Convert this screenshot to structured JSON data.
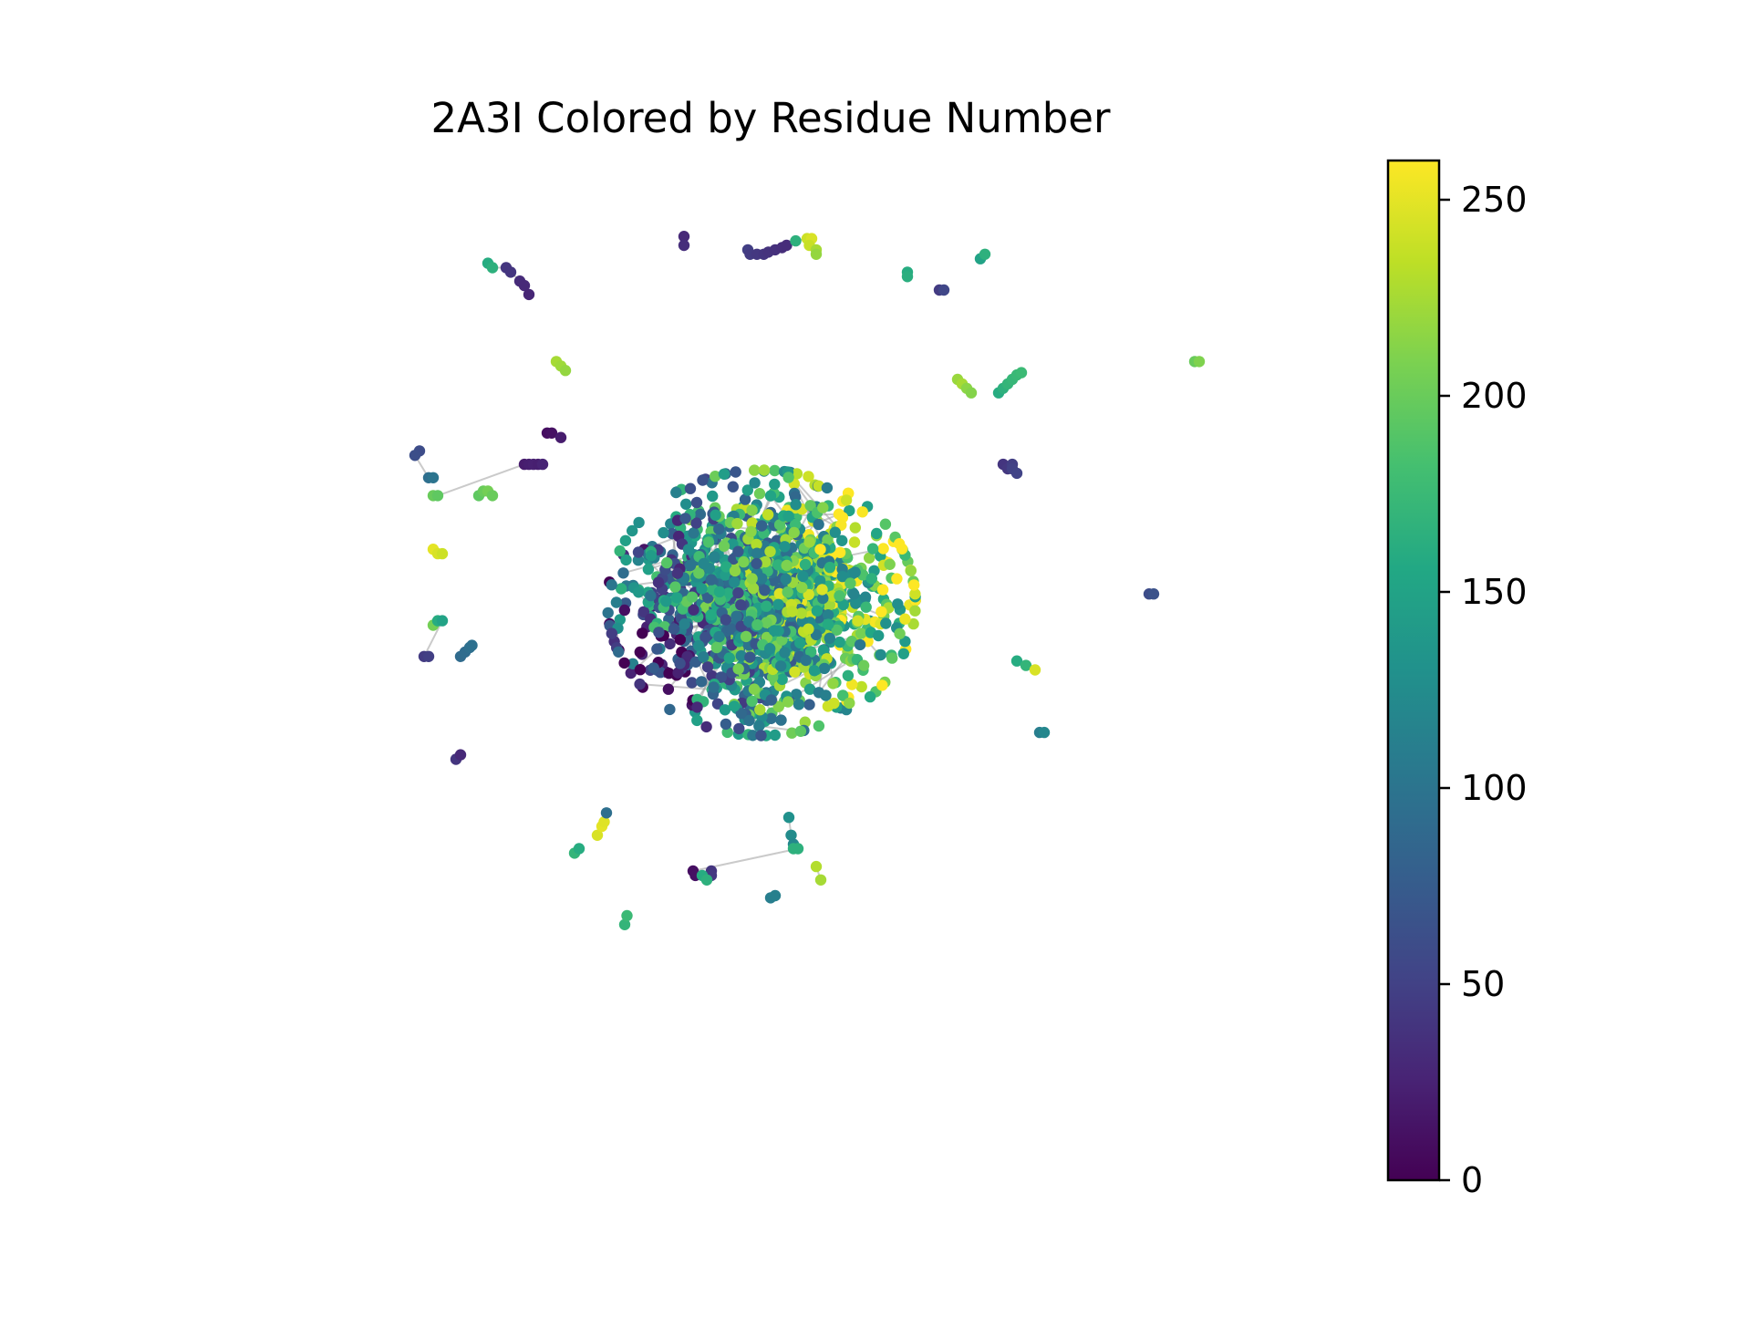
{
  "chart_data": {
    "type": "scatter",
    "title": "2A3I Colored by Residue Number",
    "xlabel": "",
    "ylabel": "",
    "axes_visible": false,
    "grid": false,
    "legend": "none",
    "colormap": "viridis",
    "color_variable": "residue number",
    "colorbar": {
      "position": "right",
      "min": 0,
      "max": 260,
      "ticks": [
        0,
        50,
        100,
        150,
        200,
        250
      ],
      "tick_labels": [
        "0",
        "50",
        "100",
        "150",
        "200",
        "250"
      ]
    },
    "edge_color": "#9e9e9e",
    "layout_xlim": [
      -1,
      1
    ],
    "layout_ylim": [
      -1,
      1
    ],
    "peripheral_groups": [
      {
        "residues": [
          30,
          34
        ],
        "points": [
          [
            -0.19,
            0.92
          ],
          [
            -0.19,
            0.9
          ]
        ]
      },
      {
        "residues": [
          48,
          45,
          42,
          40,
          38,
          36,
          34,
          33
        ],
        "points": [
          [
            -0.05,
            0.89
          ],
          [
            -0.045,
            0.88
          ],
          [
            -0.03,
            0.88
          ],
          [
            -0.015,
            0.88
          ],
          [
            -0.005,
            0.885
          ],
          [
            0.01,
            0.89
          ],
          [
            0.025,
            0.895
          ],
          [
            0.035,
            0.9
          ]
        ]
      },
      {
        "residues": [
          165,
          240,
          245,
          238,
          225,
          218
        ],
        "points": [
          [
            0.055,
            0.91
          ],
          [
            0.08,
            0.915
          ],
          [
            0.09,
            0.915
          ],
          [
            0.085,
            0.9
          ],
          [
            0.1,
            0.89
          ],
          [
            0.1,
            0.88
          ]
        ]
      },
      {
        "residues": [
          160,
          163
        ],
        "points": [
          [
            0.3,
            0.84
          ],
          [
            0.3,
            0.83
          ]
        ]
      },
      {
        "residues": [
          150,
          165
        ],
        "points": [
          [
            0.46,
            0.87
          ],
          [
            0.47,
            0.88
          ]
        ]
      },
      {
        "residues": [
          45,
          55
        ],
        "points": [
          [
            0.37,
            0.8
          ],
          [
            0.38,
            0.8
          ]
        ]
      },
      {
        "residues": [
          160,
          165,
          40,
          40,
          32,
          30,
          28
        ],
        "points": [
          [
            -0.62,
            0.86
          ],
          [
            -0.61,
            0.85
          ],
          [
            -0.58,
            0.85
          ],
          [
            -0.57,
            0.84
          ],
          [
            -0.55,
            0.82
          ],
          [
            -0.54,
            0.81
          ],
          [
            -0.53,
            0.79
          ]
        ]
      },
      {
        "residues": [
          225,
          222,
          218
        ],
        "points": [
          [
            -0.47,
            0.64
          ],
          [
            -0.46,
            0.63
          ],
          [
            -0.45,
            0.62
          ]
        ]
      },
      {
        "residues": [
          10,
          12,
          20
        ],
        "points": [
          [
            -0.49,
            0.48
          ],
          [
            -0.48,
            0.48
          ],
          [
            -0.46,
            0.47
          ]
        ]
      },
      {
        "residues": [
          220,
          225,
          215,
          212
        ],
        "points": [
          [
            0.41,
            0.6
          ],
          [
            0.42,
            0.59
          ],
          [
            0.43,
            0.58
          ],
          [
            0.44,
            0.57
          ]
        ]
      },
      {
        "residues": [
          160,
          165,
          170,
          172,
          174,
          176
        ],
        "points": [
          [
            0.5,
            0.57
          ],
          [
            0.51,
            0.58
          ],
          [
            0.52,
            0.59
          ],
          [
            0.53,
            0.6
          ],
          [
            0.54,
            0.61
          ],
          [
            0.55,
            0.615
          ]
        ]
      },
      {
        "residues": [
          40,
          42,
          48,
          50,
          52
        ],
        "points": [
          [
            0.51,
            0.41
          ],
          [
            0.52,
            0.4
          ],
          [
            0.53,
            0.41
          ],
          [
            0.53,
            0.4
          ],
          [
            0.54,
            0.39
          ]
        ]
      },
      {
        "residues": [
          60,
          62,
          95,
          100
        ],
        "points": [
          [
            -0.77,
            0.44
          ],
          [
            -0.78,
            0.43
          ],
          [
            -0.75,
            0.38
          ],
          [
            -0.74,
            0.38
          ]
        ]
      },
      {
        "residues": [
          200,
          195,
          20,
          22,
          24,
          22,
          26
        ],
        "points": [
          [
            -0.74,
            0.34
          ],
          [
            -0.73,
            0.34
          ],
          [
            -0.54,
            0.41
          ],
          [
            -0.53,
            0.41
          ],
          [
            -0.52,
            0.41
          ],
          [
            -0.51,
            0.41
          ],
          [
            -0.5,
            0.41
          ]
        ]
      },
      {
        "residues": [
          195,
          200,
          205,
          200
        ],
        "points": [
          [
            -0.64,
            0.34
          ],
          [
            -0.63,
            0.35
          ],
          [
            -0.62,
            0.35
          ],
          [
            -0.61,
            0.34
          ]
        ]
      },
      {
        "residues": [
          250,
          245,
          240
        ],
        "points": [
          [
            -0.74,
            0.22
          ],
          [
            -0.73,
            0.21
          ],
          [
            -0.72,
            0.21
          ]
        ]
      },
      {
        "residues": [
          60,
          65
        ],
        "points": [
          [
            0.83,
            0.12
          ],
          [
            0.84,
            0.12
          ]
        ]
      },
      {
        "residues": [
          205,
          160,
          150,
          45,
          48
        ],
        "points": [
          [
            -0.74,
            0.05
          ],
          [
            -0.73,
            0.06
          ],
          [
            -0.72,
            0.06
          ],
          [
            -0.76,
            -0.02
          ],
          [
            -0.75,
            -0.02
          ]
        ]
      },
      {
        "residues": [
          90,
          92,
          95,
          96
        ],
        "points": [
          [
            -0.68,
            -0.02
          ],
          [
            -0.67,
            -0.01
          ],
          [
            -0.66,
            0.0
          ],
          [
            -0.655,
            0.005
          ]
        ]
      },
      {
        "residues": [
          160,
          170,
          245
        ],
        "points": [
          [
            0.54,
            -0.03
          ],
          [
            0.56,
            -0.04
          ],
          [
            0.58,
            -0.05
          ]
        ]
      },
      {
        "residues": [
          40,
          30
        ],
        "points": [
          [
            -0.69,
            -0.25
          ],
          [
            -0.68,
            -0.24
          ]
        ]
      },
      {
        "residues": [
          110,
          120
        ],
        "points": [
          [
            0.59,
            -0.19
          ],
          [
            0.6,
            -0.19
          ]
        ]
      },
      {
        "residues": [
          245,
          250,
          248,
          95
        ],
        "points": [
          [
            -0.38,
            -0.42
          ],
          [
            -0.37,
            -0.4
          ],
          [
            -0.365,
            -0.39
          ],
          [
            -0.36,
            -0.37
          ]
        ]
      },
      {
        "residues": [
          170,
          160
        ],
        "points": [
          [
            -0.43,
            -0.46
          ],
          [
            -0.42,
            -0.45
          ]
        ]
      },
      {
        "residues": [
          130,
          125,
          120,
          165,
          165,
          10,
          12,
          40,
          42,
          160,
          165
        ],
        "points": [
          [
            0.04,
            -0.38
          ],
          [
            0.045,
            -0.42
          ],
          [
            0.05,
            -0.44
          ],
          [
            0.05,
            -0.45
          ],
          [
            0.06,
            -0.45
          ],
          [
            -0.17,
            -0.5
          ],
          [
            -0.165,
            -0.51
          ],
          [
            -0.13,
            -0.5
          ],
          [
            -0.13,
            -0.51
          ],
          [
            -0.15,
            -0.51
          ],
          [
            -0.14,
            -0.52
          ]
        ]
      },
      {
        "residues": [
          110,
          112
        ],
        "points": [
          [
            0.0,
            -0.56
          ],
          [
            0.01,
            -0.555
          ]
        ]
      },
      {
        "residues": [
          230,
          225
        ],
        "points": [
          [
            0.1,
            -0.49
          ],
          [
            0.11,
            -0.52
          ]
        ]
      },
      {
        "residues": [
          170,
          175
        ],
        "points": [
          [
            -0.32,
            -0.62
          ],
          [
            -0.315,
            -0.6
          ]
        ]
      },
      {
        "residues": [
          200,
          210
        ],
        "points": [
          [
            0.93,
            0.64
          ],
          [
            0.94,
            0.64
          ]
        ]
      }
    ],
    "core_cluster": {
      "center": [
        -0.02,
        0.1
      ],
      "spread": [
        0.25,
        0.22
      ],
      "approx_point_count": 1450,
      "residue_range": [
        0,
        260
      ]
    }
  }
}
